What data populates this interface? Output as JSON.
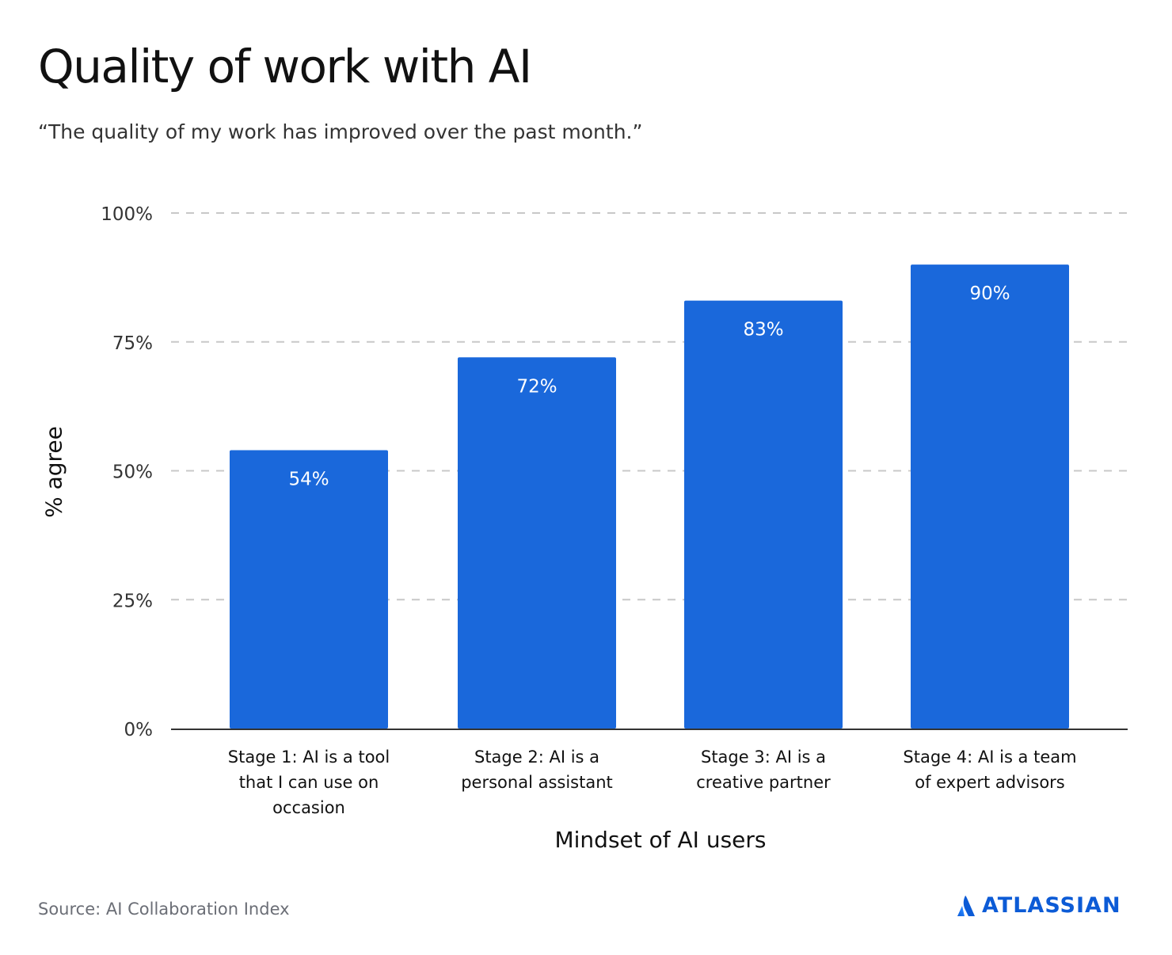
{
  "header": {
    "title": "Quality of work with AI",
    "subtitle": "“The quality of my work has improved over the past month.”"
  },
  "footer": {
    "source": "Source: AI Collaboration Index",
    "brand": "ATLASSIAN",
    "brand_icon": "atlassian-logo-icon"
  },
  "colors": {
    "bar": "#1a68db",
    "bar_label": "#ffffff",
    "grid": "#c8c8c8",
    "axis": "#333333",
    "brand": "#0c5bd6"
  },
  "chart_data": {
    "type": "bar",
    "title": "Quality of work with AI",
    "subtitle": "“The quality of my work has improved over the past month.”",
    "xlabel": "Mindset of AI users",
    "ylabel": "% agree",
    "categories": [
      [
        "Stage 1: AI is a tool",
        "that I can use on",
        "occasion"
      ],
      [
        "Stage 2: AI is a",
        "personal assistant"
      ],
      [
        "Stage 3: AI is a",
        "creative partner"
      ],
      [
        "Stage 4: AI is a team",
        "of expert advisors"
      ]
    ],
    "values": [
      54,
      72,
      83,
      90
    ],
    "data_labels": [
      "54%",
      "72%",
      "83%",
      "90%"
    ],
    "ylim": [
      0,
      100
    ],
    "yticks": [
      0,
      25,
      50,
      75,
      100
    ],
    "ytick_labels": [
      "0%",
      "25%",
      "50%",
      "75%",
      "100%"
    ],
    "grid": true,
    "grid_style": "dashed",
    "legend": "none"
  }
}
